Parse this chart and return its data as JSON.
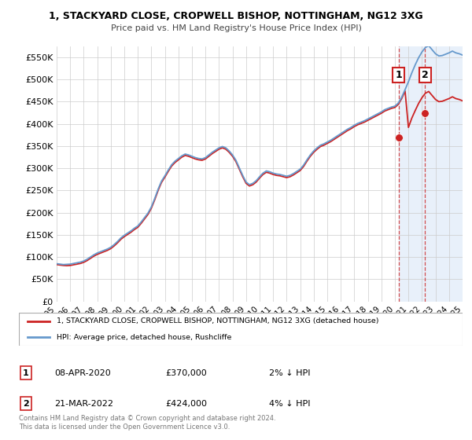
{
  "title1": "1, STACKYARD CLOSE, CROPWELL BISHOP, NOTTINGHAM, NG12 3XG",
  "title2": "Price paid vs. HM Land Registry's House Price Index (HPI)",
  "legend_red": "1, STACKYARD CLOSE, CROPWELL BISHOP, NOTTINGHAM, NG12 3XG (detached house)",
  "legend_blue": "HPI: Average price, detached house, Rushcliffe",
  "footer": "Contains HM Land Registry data © Crown copyright and database right 2024.\nThis data is licensed under the Open Government Licence v3.0.",
  "sale1_date": "08-APR-2020",
  "sale1_price": "£370,000",
  "sale1_hpi": "2% ↓ HPI",
  "sale1_year": 2020.27,
  "sale1_value": 370000,
  "sale2_date": "21-MAR-2022",
  "sale2_price": "£424,000",
  "sale2_hpi": "4% ↓ HPI",
  "sale2_year": 2022.22,
  "sale2_value": 424000,
  "hpi_color": "#6699cc",
  "price_color": "#cc2222",
  "shaded_color": "#e8f0fa",
  "ylim_min": 0,
  "ylim_max": 575000,
  "yticks": [
    0,
    50000,
    100000,
    150000,
    200000,
    250000,
    300000,
    350000,
    400000,
    450000,
    500000,
    550000
  ],
  "ytick_labels": [
    "£0",
    "£50K",
    "£100K",
    "£150K",
    "£200K",
    "£250K",
    "£300K",
    "£350K",
    "£400K",
    "£450K",
    "£500K",
    "£550K"
  ],
  "xlim_min": 1995,
  "xlim_max": 2025,
  "hpi_years": [
    1995.0,
    1995.25,
    1995.5,
    1995.75,
    1996.0,
    1996.25,
    1996.5,
    1996.75,
    1997.0,
    1997.25,
    1997.5,
    1997.75,
    1998.0,
    1998.25,
    1998.5,
    1998.75,
    1999.0,
    1999.25,
    1999.5,
    1999.75,
    2000.0,
    2000.25,
    2000.5,
    2000.75,
    2001.0,
    2001.25,
    2001.5,
    2001.75,
    2002.0,
    2002.25,
    2002.5,
    2002.75,
    2003.0,
    2003.25,
    2003.5,
    2003.75,
    2004.0,
    2004.25,
    2004.5,
    2004.75,
    2005.0,
    2005.25,
    2005.5,
    2005.75,
    2006.0,
    2006.25,
    2006.5,
    2006.75,
    2007.0,
    2007.25,
    2007.5,
    2007.75,
    2008.0,
    2008.25,
    2008.5,
    2008.75,
    2009.0,
    2009.25,
    2009.5,
    2009.75,
    2010.0,
    2010.25,
    2010.5,
    2010.75,
    2011.0,
    2011.25,
    2011.5,
    2011.75,
    2012.0,
    2012.25,
    2012.5,
    2012.75,
    2013.0,
    2013.25,
    2013.5,
    2013.75,
    2014.0,
    2014.25,
    2014.5,
    2014.75,
    2015.0,
    2015.25,
    2015.5,
    2015.75,
    2016.0,
    2016.25,
    2016.5,
    2016.75,
    2017.0,
    2017.25,
    2017.5,
    2017.75,
    2018.0,
    2018.25,
    2018.5,
    2018.75,
    2019.0,
    2019.25,
    2019.5,
    2019.75,
    2020.0,
    2020.25,
    2020.5,
    2020.75,
    2021.0,
    2021.25,
    2021.5,
    2021.75,
    2022.0,
    2022.25,
    2022.5,
    2022.75,
    2023.0,
    2023.25,
    2023.5,
    2023.75,
    2024.0,
    2024.25,
    2024.5,
    2024.75,
    2025.0
  ],
  "hpi_values": [
    85000,
    84000,
    83000,
    83500,
    84000,
    85500,
    87000,
    88500,
    91000,
    95000,
    100000,
    105000,
    109000,
    112000,
    115000,
    118000,
    122000,
    128000,
    135000,
    143000,
    149000,
    154000,
    159000,
    165000,
    170000,
    179000,
    189000,
    199000,
    213000,
    232000,
    253000,
    271000,
    283000,
    296000,
    308000,
    316000,
    322000,
    328000,
    332000,
    330000,
    327000,
    324000,
    322000,
    321000,
    324000,
    330000,
    336000,
    341000,
    346000,
    349000,
    346000,
    339000,
    330000,
    318000,
    301000,
    284000,
    269000,
    263000,
    266000,
    272000,
    281000,
    289000,
    294000,
    292000,
    289000,
    287000,
    286000,
    284000,
    282000,
    284000,
    288000,
    293000,
    298000,
    307000,
    319000,
    330000,
    339000,
    346000,
    352000,
    355000,
    359000,
    363000,
    368000,
    373000,
    378000,
    383000,
    388000,
    392000,
    397000,
    401000,
    404000,
    407000,
    411000,
    415000,
    419000,
    423000,
    427000,
    432000,
    435000,
    438000,
    440000,
    447000,
    460000,
    477000,
    495000,
    515000,
    533000,
    549000,
    562000,
    572000,
    576000,
    567000,
    558000,
    553000,
    554000,
    557000,
    560000,
    564000,
    560000,
    558000,
    555000
  ],
  "price_years": [
    1995.0,
    1995.25,
    1995.5,
    1995.75,
    1996.0,
    1996.25,
    1996.5,
    1996.75,
    1997.0,
    1997.25,
    1997.5,
    1997.75,
    1998.0,
    1998.25,
    1998.5,
    1998.75,
    1999.0,
    1999.25,
    1999.5,
    1999.75,
    2000.0,
    2000.25,
    2000.5,
    2000.75,
    2001.0,
    2001.25,
    2001.5,
    2001.75,
    2002.0,
    2002.25,
    2002.5,
    2002.75,
    2003.0,
    2003.25,
    2003.5,
    2003.75,
    2004.0,
    2004.25,
    2004.5,
    2004.75,
    2005.0,
    2005.25,
    2005.5,
    2005.75,
    2006.0,
    2006.25,
    2006.5,
    2006.75,
    2007.0,
    2007.25,
    2007.5,
    2007.75,
    2008.0,
    2008.25,
    2008.5,
    2008.75,
    2009.0,
    2009.25,
    2009.5,
    2009.75,
    2010.0,
    2010.25,
    2010.5,
    2010.75,
    2011.0,
    2011.25,
    2011.5,
    2011.75,
    2012.0,
    2012.25,
    2012.5,
    2012.75,
    2013.0,
    2013.25,
    2013.5,
    2013.75,
    2014.0,
    2014.25,
    2014.5,
    2014.75,
    2015.0,
    2015.25,
    2015.5,
    2015.75,
    2016.0,
    2016.25,
    2016.5,
    2016.75,
    2017.0,
    2017.25,
    2017.5,
    2017.75,
    2018.0,
    2018.25,
    2018.5,
    2018.75,
    2019.0,
    2019.25,
    2019.5,
    2019.75,
    2020.0,
    2020.25,
    2020.5,
    2020.75,
    2021.0,
    2021.25,
    2021.5,
    2021.75,
    2022.0,
    2022.25,
    2022.5,
    2022.75,
    2023.0,
    2023.25,
    2023.5,
    2023.75,
    2024.0,
    2024.25,
    2024.5,
    2024.75,
    2025.0
  ],
  "price_values": [
    83000,
    82000,
    81000,
    80500,
    81000,
    82500,
    84000,
    85500,
    88000,
    92000,
    97000,
    102000,
    106000,
    109000,
    112000,
    115000,
    119000,
    125000,
    132000,
    140000,
    146000,
    151000,
    156000,
    162000,
    167000,
    176000,
    186000,
    196000,
    210000,
    229000,
    250000,
    268000,
    280000,
    293000,
    305000,
    313000,
    319000,
    325000,
    329000,
    327000,
    324000,
    321000,
    319000,
    318000,
    321000,
    327000,
    333000,
    338000,
    343000,
    346000,
    343000,
    336000,
    327000,
    315000,
    298000,
    281000,
    266000,
    260000,
    263000,
    269000,
    278000,
    286000,
    291000,
    289000,
    286000,
    284000,
    283000,
    281000,
    279000,
    281000,
    285000,
    290000,
    295000,
    304000,
    316000,
    327000,
    336000,
    343000,
    349000,
    352000,
    356000,
    360000,
    365000,
    370000,
    375000,
    380000,
    385000,
    389000,
    394000,
    398000,
    401000,
    404000,
    408000,
    412000,
    416000,
    420000,
    424000,
    429000,
    432000,
    435000,
    437000,
    444000,
    457000,
    474000,
    392000,
    413000,
    430000,
    446000,
    459000,
    469000,
    473000,
    464000,
    455000,
    450000,
    451000,
    454000,
    457000,
    461000,
    457000,
    455000,
    452000
  ]
}
